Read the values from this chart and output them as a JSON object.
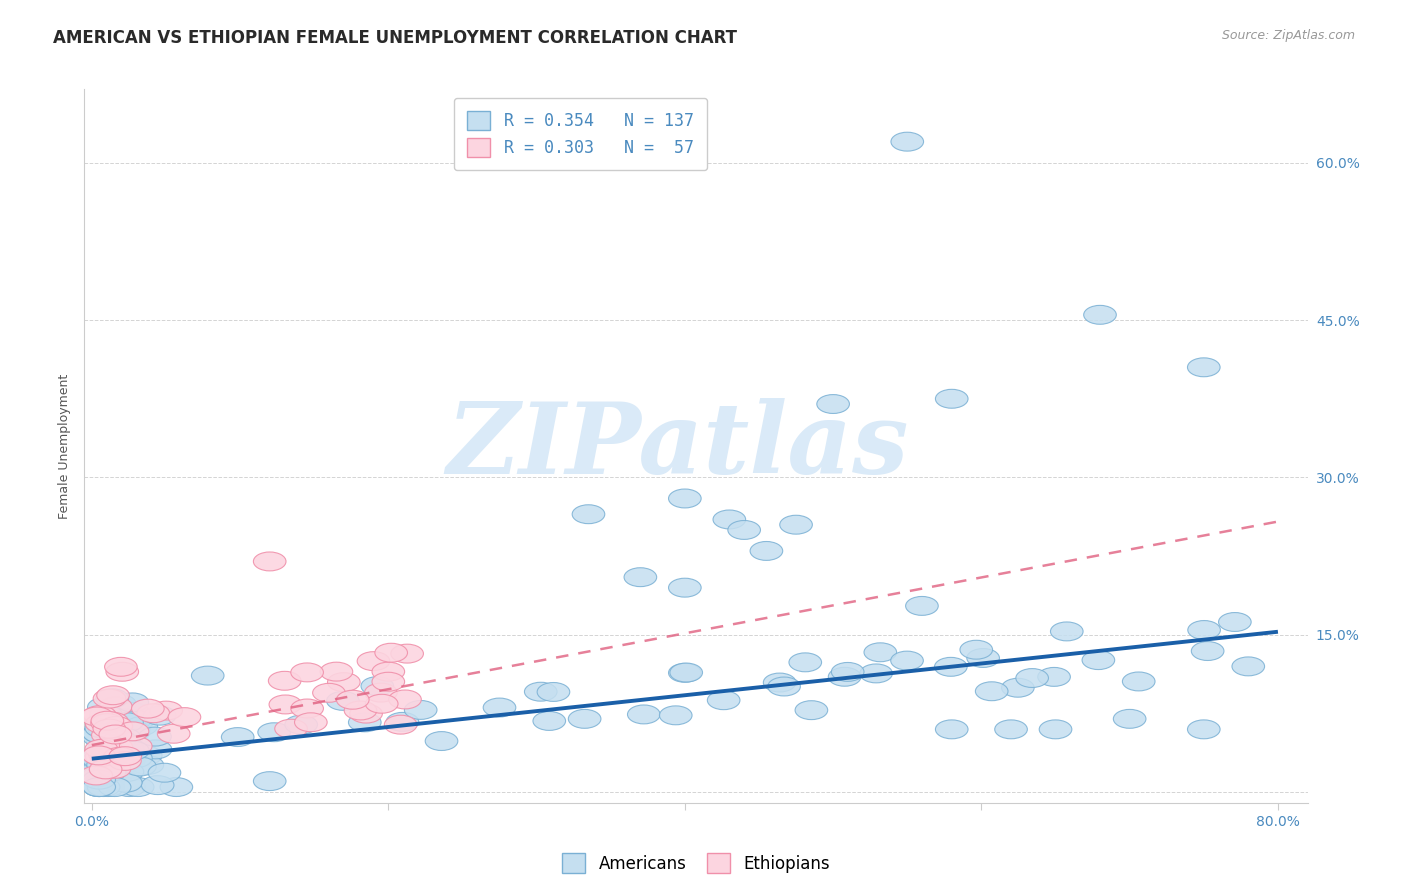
{
  "title": "AMERICAN VS ETHIOPIAN FEMALE UNEMPLOYMENT CORRELATION CHART",
  "source": "Source: ZipAtlas.com",
  "ylabel": "Female Unemployment",
  "legend_label_americans": "Americans",
  "legend_label_ethiopians": "Ethiopians",
  "r_americans": 0.354,
  "n_americans": 137,
  "r_ethiopians": 0.303,
  "n_ethiopians": 57,
  "xlim": [
    -0.005,
    0.82
  ],
  "ylim": [
    -0.01,
    0.67
  ],
  "ytick_vals": [
    0.0,
    0.15,
    0.3,
    0.45,
    0.6
  ],
  "xtick_vals": [
    0.0,
    0.2,
    0.4,
    0.6,
    0.8
  ],
  "color_americans_fill": "#c5dff0",
  "color_americans_edge": "#7ab0d4",
  "color_ethiopians_fill": "#fcd5e0",
  "color_ethiopians_edge": "#f090aa",
  "color_trend_americans": "#1a5fa8",
  "color_trend_ethiopians": "#e06080",
  "background_color": "#ffffff",
  "watermark": "ZIPatlas",
  "watermark_color": "#daeaf8",
  "title_fontsize": 12,
  "axis_label_fontsize": 9,
  "tick_fontsize": 10,
  "legend_fontsize": 11,
  "grid_color": "#d0d0d0",
  "spine_color": "#cccccc",
  "tick_color": "#4a8abf",
  "am_trend_start_y": 0.032,
  "am_trend_end_y": 0.153,
  "et_trend_start_y": 0.045,
  "et_trend_end_y": 0.258
}
